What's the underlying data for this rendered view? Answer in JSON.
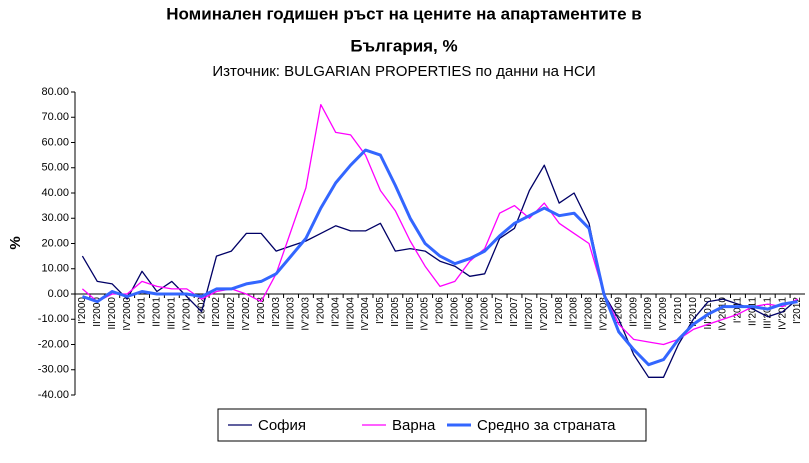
{
  "chart_data": {
    "type": "line",
    "title": [
      "Номинален годишен ръст на цените на апартаментите в",
      "България, %"
    ],
    "subtitle": "Източник: BULGARIAN PROPERTIES по данни на НСИ",
    "y_label": "%",
    "categories": [
      "I'2000",
      "II'2000",
      "III'2000",
      "IV'2000",
      "I'2001",
      "II'2001",
      "III'2001",
      "IV'2001",
      "I'2002",
      "II'2002",
      "III'2002",
      "IV'2002",
      "I'2003",
      "II'2003",
      "III'2003",
      "IV'2003",
      "I'2004",
      "II'2004",
      "III'2004",
      "IV'2004",
      "I'2005",
      "II'2005",
      "III'2005",
      "IV'2005",
      "I'2006",
      "II'2006",
      "III'2006",
      "IV'2006",
      "I'2007",
      "II'2007",
      "III'2007",
      "IV'2007",
      "I'2008",
      "II'2008",
      "III'2008",
      "IV'2008",
      "I'2009",
      "II'2009",
      "III'2009",
      "IV'2009",
      "I'2010",
      "II'2010",
      "III'2010",
      "IV'2010",
      "I'2011",
      "II'2011",
      "III'2011",
      "IV'2011",
      "I'2012"
    ],
    "series": [
      {
        "name": "София",
        "color": "#000066",
        "width": 1.3,
        "values": [
          15,
          5,
          4,
          -2,
          9,
          1,
          5,
          -1,
          -7,
          15,
          17,
          24,
          24,
          17,
          19,
          21,
          24,
          27,
          25,
          25,
          28,
          17,
          18,
          17,
          13,
          11,
          7,
          8,
          22,
          26,
          41,
          51,
          36,
          40,
          28,
          0,
          -10,
          -24,
          -33,
          -33,
          -20,
          -10,
          -3,
          -2,
          -4,
          -6,
          -9,
          -7,
          -2
        ]
      },
      {
        "name": "Варна",
        "color": "#ff00ff",
        "width": 1.3,
        "values": [
          2,
          -3,
          0,
          0,
          5,
          3,
          2,
          2,
          -2,
          1,
          2,
          0,
          -3,
          8,
          25,
          42,
          75,
          64,
          63,
          55,
          41,
          33,
          21,
          11,
          3,
          5,
          13,
          18,
          32,
          35,
          30,
          36,
          28,
          24,
          20,
          0,
          -12,
          -18,
          -19,
          -20,
          -18,
          -14,
          -12,
          -10,
          -8,
          -5,
          -4,
          -5,
          -2
        ]
      },
      {
        "name": "Средно за страната",
        "color": "#3366ff",
        "width": 3,
        "values": [
          -1,
          -3,
          1,
          -1,
          1,
          0,
          0,
          0,
          -1,
          2,
          2,
          4,
          5,
          8,
          15,
          22,
          34,
          44,
          51,
          57,
          55,
          43,
          30,
          20,
          15,
          12,
          14,
          17,
          23,
          28,
          31,
          34,
          31,
          32,
          26,
          0,
          -15,
          -22,
          -28,
          -26,
          -18,
          -12,
          -8,
          -5,
          -5,
          -5,
          -6,
          -4,
          -3
        ]
      }
    ],
    "ylim": [
      -40,
      80
    ],
    "yticks": [
      {
        "value": -40,
        "label": "-40.00"
      },
      {
        "value": -30,
        "label": "-30.00"
      },
      {
        "value": -20,
        "label": "-20.00"
      },
      {
        "value": -10,
        "label": "-10.00"
      },
      {
        "value": 0,
        "label": "0.00"
      },
      {
        "value": 10,
        "label": "10.00"
      },
      {
        "value": 20,
        "label": "20.00"
      },
      {
        "value": 30,
        "label": "30.00"
      },
      {
        "value": 40,
        "label": "40.00"
      },
      {
        "value": 50,
        "label": "50.00"
      },
      {
        "value": 60,
        "label": "60.00"
      },
      {
        "value": 70,
        "label": "70.00"
      },
      {
        "value": 80,
        "label": "80.00"
      }
    ]
  }
}
